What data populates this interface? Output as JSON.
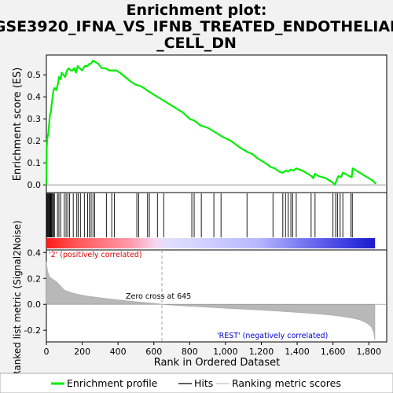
{
  "chart_data": {
    "type": "line",
    "title_lines": [
      "Enrichment plot:",
      "GSE3920_IFNA_VS_IFNB_TREATED_ENDOTHELIAL",
      "_CELL_DN"
    ],
    "top_panel": {
      "ylabel": "Enrichment score (ES)",
      "ylim": [
        -0.035,
        0.59
      ],
      "yticks": [
        0.0,
        0.1,
        0.2,
        0.3,
        0.4,
        0.5
      ],
      "ytick_labels": [
        "0.0",
        "0.1",
        "0.2",
        "0.3",
        "0.4",
        "0.5"
      ],
      "series_name": "Enrichment profile",
      "color": "#00ee00",
      "points": [
        [
          0,
          0.0
        ],
        [
          2,
          0.17
        ],
        [
          5,
          0.21
        ],
        [
          10,
          0.23
        ],
        [
          15,
          0.27
        ],
        [
          20,
          0.32
        ],
        [
          25,
          0.33
        ],
        [
          30,
          0.37
        ],
        [
          35,
          0.4
        ],
        [
          40,
          0.43
        ],
        [
          45,
          0.44
        ],
        [
          55,
          0.43
        ],
        [
          65,
          0.46
        ],
        [
          70,
          0.49
        ],
        [
          80,
          0.48
        ],
        [
          85,
          0.51
        ],
        [
          95,
          0.5
        ],
        [
          105,
          0.49
        ],
        [
          115,
          0.52
        ],
        [
          125,
          0.53
        ],
        [
          135,
          0.52
        ],
        [
          145,
          0.52
        ],
        [
          155,
          0.53
        ],
        [
          165,
          0.51
        ],
        [
          175,
          0.54
        ],
        [
          185,
          0.53
        ],
        [
          200,
          0.52
        ],
        [
          215,
          0.54
        ],
        [
          230,
          0.54
        ],
        [
          240,
          0.55
        ],
        [
          250,
          0.55
        ],
        [
          260,
          0.565
        ],
        [
          270,
          0.56
        ],
        [
          290,
          0.55
        ],
        [
          310,
          0.53
        ],
        [
          330,
          0.53
        ],
        [
          350,
          0.52
        ],
        [
          370,
          0.52
        ],
        [
          390,
          0.52
        ],
        [
          410,
          0.51
        ],
        [
          440,
          0.49
        ],
        [
          470,
          0.47
        ],
        [
          500,
          0.455
        ],
        [
          520,
          0.45
        ],
        [
          545,
          0.44
        ],
        [
          570,
          0.425
        ],
        [
          600,
          0.41
        ],
        [
          640,
          0.39
        ],
        [
          680,
          0.37
        ],
        [
          720,
          0.35
        ],
        [
          760,
          0.33
        ],
        [
          800,
          0.3
        ],
        [
          830,
          0.29
        ],
        [
          860,
          0.27
        ],
        [
          900,
          0.26
        ],
        [
          940,
          0.24
        ],
        [
          980,
          0.22
        ],
        [
          1030,
          0.2
        ],
        [
          1080,
          0.17
        ],
        [
          1120,
          0.15
        ],
        [
          1150,
          0.14
        ],
        [
          1180,
          0.12
        ],
        [
          1220,
          0.1
        ],
        [
          1255,
          0.08
        ],
        [
          1275,
          0.075
        ],
        [
          1300,
          0.06
        ],
        [
          1320,
          0.055
        ],
        [
          1335,
          0.065
        ],
        [
          1350,
          0.06
        ],
        [
          1365,
          0.07
        ],
        [
          1380,
          0.065
        ],
        [
          1395,
          0.075
        ],
        [
          1410,
          0.07
        ],
        [
          1440,
          0.06
        ],
        [
          1480,
          0.04
        ],
        [
          1490,
          0.03
        ],
        [
          1500,
          0.05
        ],
        [
          1520,
          0.04
        ],
        [
          1560,
          0.03
        ],
        [
          1600,
          0.01
        ],
        [
          1610,
          0.0
        ],
        [
          1620,
          0.02
        ],
        [
          1630,
          0.04
        ],
        [
          1645,
          0.035
        ],
        [
          1655,
          0.055
        ],
        [
          1670,
          0.05
        ],
        [
          1690,
          0.04
        ],
        [
          1705,
          0.035
        ],
        [
          1710,
          0.075
        ],
        [
          1740,
          0.06
        ],
        [
          1780,
          0.04
        ],
        [
          1820,
          0.02
        ],
        [
          1840,
          0.005
        ]
      ]
    },
    "hits_panel": {
      "hits": [
        3,
        6,
        10,
        14,
        18,
        22,
        26,
        30,
        35,
        40,
        45,
        62,
        70,
        80,
        100,
        110,
        120,
        130,
        150,
        170,
        178,
        190,
        212,
        230,
        240,
        250,
        260,
        270,
        335,
        365,
        380,
        505,
        515,
        565,
        575,
        620,
        655,
        812,
        825,
        865,
        935,
        975,
        1120,
        1265,
        1320,
        1335,
        1350,
        1365,
        1375,
        1395,
        1478,
        1500,
        1600,
        1615,
        1625,
        1640,
        1655,
        1700,
        1708
      ]
    },
    "ranked_panel": {
      "ylabel": "Ranked list metric (Signal2Noise)",
      "ylim": [
        -0.29,
        0.42
      ],
      "yticks": [
        -0.2,
        0.0,
        0.2,
        0.4
      ],
      "ytick_labels": [
        "-0.2",
        "0.0",
        "0.2",
        "0.4"
      ],
      "positive_label": "'2' (positively correlated)",
      "negative_label": "'REST' (negatively correlated)",
      "zero_cross_label": "Zero cross at 645",
      "zero_cross": 645,
      "profile": [
        [
          0,
          0.33
        ],
        [
          5,
          0.27
        ],
        [
          10,
          0.24
        ],
        [
          20,
          0.21
        ],
        [
          40,
          0.19
        ],
        [
          60,
          0.17
        ],
        [
          80,
          0.14
        ],
        [
          100,
          0.11
        ],
        [
          150,
          0.085
        ],
        [
          200,
          0.07
        ],
        [
          300,
          0.05
        ],
        [
          400,
          0.035
        ],
        [
          500,
          0.02
        ],
        [
          600,
          0.008
        ],
        [
          645,
          0.0
        ],
        [
          700,
          -0.006
        ],
        [
          800,
          -0.015
        ],
        [
          900,
          -0.022
        ],
        [
          1000,
          -0.03
        ],
        [
          1100,
          -0.037
        ],
        [
          1200,
          -0.045
        ],
        [
          1300,
          -0.053
        ],
        [
          1400,
          -0.062
        ],
        [
          1500,
          -0.072
        ],
        [
          1600,
          -0.085
        ],
        [
          1650,
          -0.093
        ],
        [
          1700,
          -0.105
        ],
        [
          1750,
          -0.12
        ],
        [
          1790,
          -0.145
        ],
        [
          1815,
          -0.175
        ],
        [
          1828,
          -0.22
        ],
        [
          1834,
          -0.28
        ]
      ]
    },
    "x_axis": {
      "xlabel": "Rank in Ordered Dataset",
      "xlim": [
        0,
        1900
      ],
      "xticks": [
        0,
        200,
        400,
        600,
        800,
        1000,
        1200,
        1400,
        1600,
        1800
      ],
      "xtick_labels": [
        "0",
        "200",
        "400",
        "600",
        "800",
        "1,000",
        "1,200",
        "1,400",
        "1,600",
        "1,800"
      ],
      "n_genes": 1835
    },
    "legend": {
      "placement": "bottom",
      "items": [
        {
          "label": "Enrichment profile",
          "color": "#00ee00"
        },
        {
          "label": "Hits",
          "color": "#000000"
        },
        {
          "label": "Ranking metric scores",
          "color": "#c0c0c0"
        }
      ]
    }
  }
}
